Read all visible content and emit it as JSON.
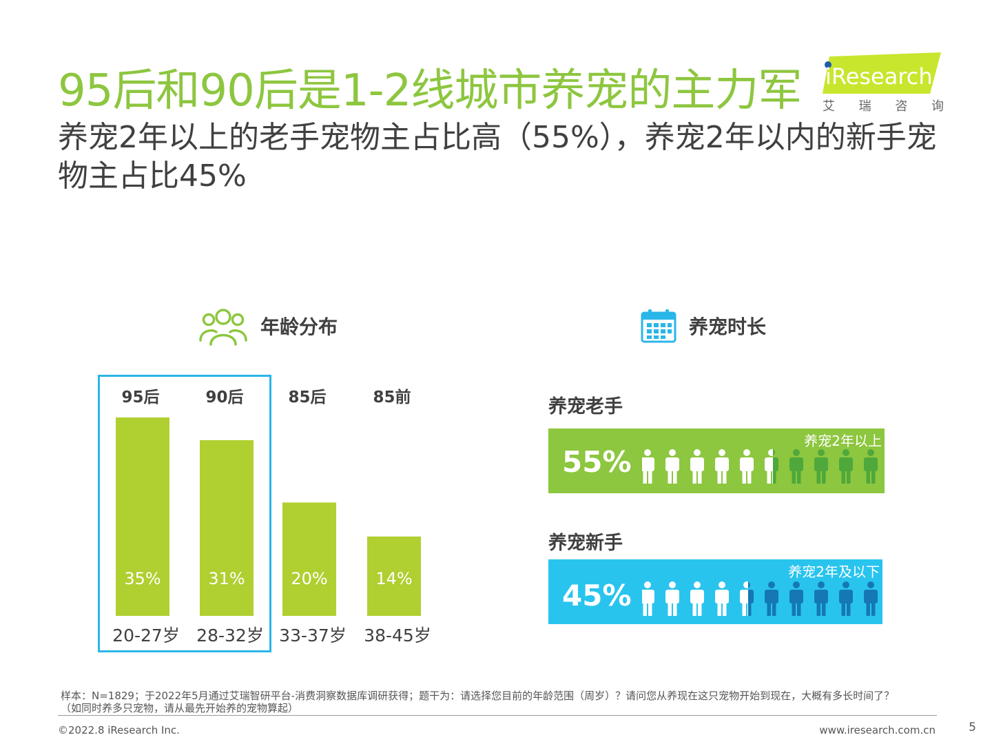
{
  "header": {
    "title": "95后和90后是1-2线城市养宠的主力军",
    "subtitle": "养宠2年以上的老手宠物主占比高（55%），养宠2年以内的新手宠物主占比45%"
  },
  "logo": {
    "wordmark": "iResearch",
    "tagline": [
      "艾",
      "瑞",
      "咨",
      "询"
    ],
    "colors": {
      "green": "#c8e62d",
      "dot": "#1d5ca8"
    }
  },
  "age_section": {
    "heading": "年龄分布",
    "icon": "people-group-icon",
    "highlighted_groups": [
      "95后",
      "90后"
    ]
  },
  "duration_section": {
    "heading": "养宠时长",
    "icon": "calendar-icon",
    "veteran": {
      "label": "养宠老手",
      "percent": "55%",
      "note": "养宠2年以上",
      "share": 0.55,
      "color": "#8dc63f",
      "dark": "#4ea83b"
    },
    "novice": {
      "label": "养宠新手",
      "percent": "45%",
      "note": "养宠2年及以下",
      "share": 0.45,
      "color": "#29c4ee",
      "dark": "#1578b4"
    }
  },
  "chart_data": {
    "type": "bar",
    "categories": [
      "20-27岁",
      "28-32岁",
      "33-37岁",
      "38-45岁"
    ],
    "group_labels": [
      "95后",
      "90后",
      "85后",
      "85前"
    ],
    "values": [
      35,
      31,
      20,
      14
    ],
    "value_labels": [
      "35%",
      "31%",
      "20%",
      "14%"
    ],
    "ylim": [
      0,
      35
    ],
    "bar_color": "#b0cf30",
    "grid": false
  },
  "footer": {
    "footnote_line1": "样本：N=1829；于2022年5月通过艾瑞智研平台-消费洞察数据库调研获得；题干为：请选择您目前的年龄范围（周岁）？请问您从养现在这只宠物开始到现在，大概有多长时间了？",
    "footnote_line2": "（如同时养多只宠物，请从最先开始养的宠物算起）",
    "copyright": "©2022.8 iResearch Inc.",
    "website": "www.iresearch.com.cn",
    "page_number": "5"
  }
}
